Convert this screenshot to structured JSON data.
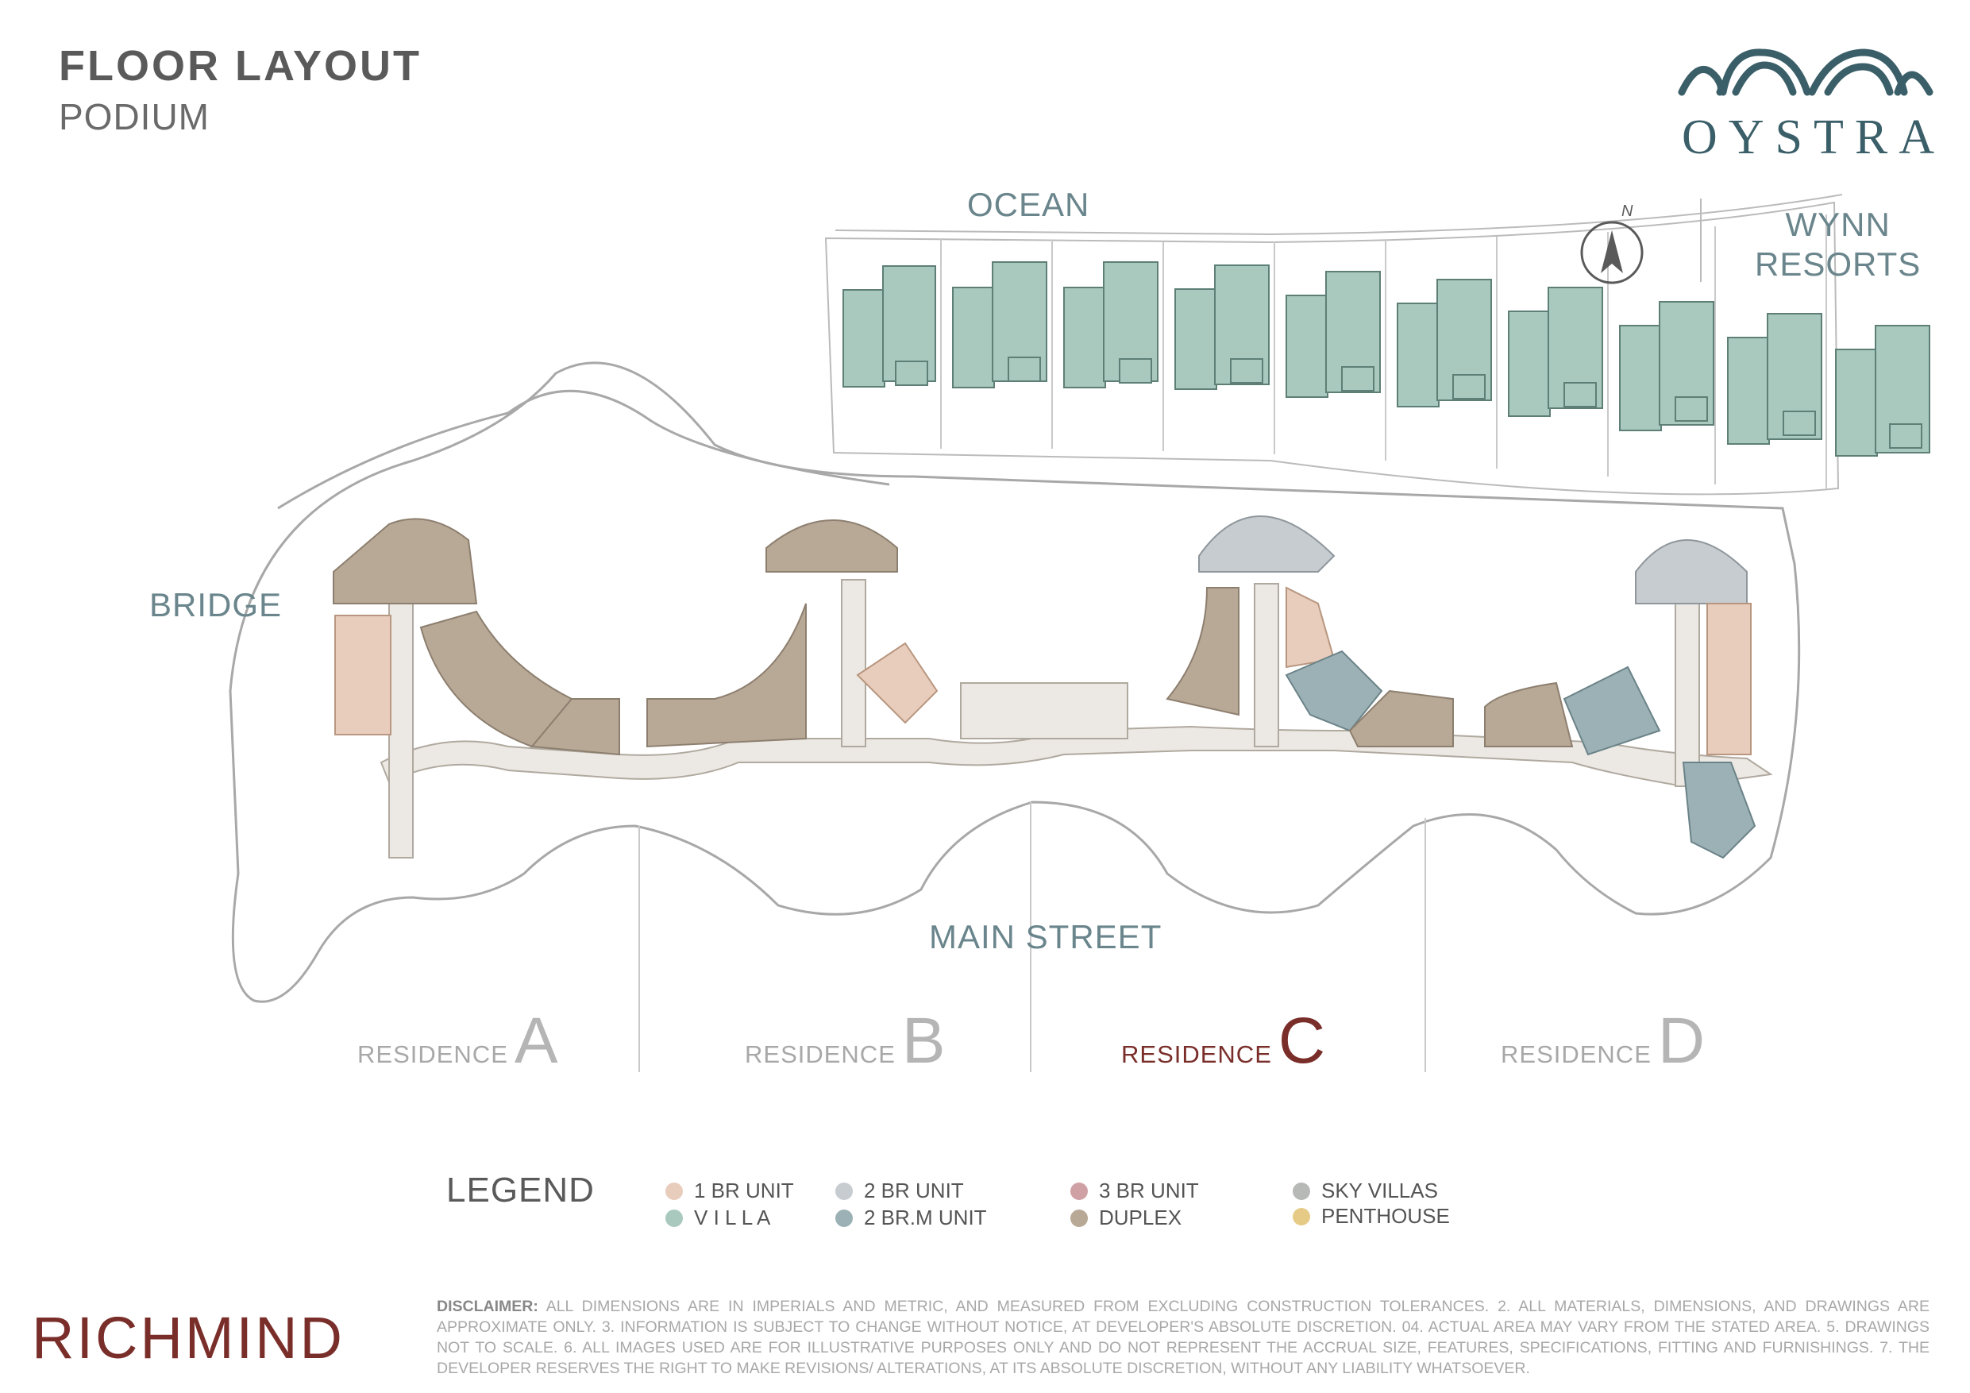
{
  "header": {
    "title": "FLOOR LAYOUT",
    "subtitle": "PODIUM"
  },
  "brand": {
    "top_name": "OYSTRA",
    "bottom_name": "RICHMIND"
  },
  "map_labels": {
    "ocean": "OCEAN",
    "wynn_line1": "WYNN",
    "wynn_line2": "RESORTS",
    "bridge": "BRIDGE",
    "main_street": "MAIN STREET",
    "compass": "N"
  },
  "residences": [
    {
      "word": "RESIDENCE",
      "letter": "A",
      "active": false
    },
    {
      "word": "RESIDENCE",
      "letter": "B",
      "active": false
    },
    {
      "word": "RESIDENCE",
      "letter": "C",
      "active": true
    },
    {
      "word": "RESIDENCE",
      "letter": "D",
      "active": false
    }
  ],
  "legend": {
    "title": "LEGEND",
    "items": [
      {
        "label": "1 BR UNIT",
        "color": "#e8cdbd"
      },
      {
        "label": "V I L L A",
        "color": "#a9c9bf"
      },
      {
        "label": "2 BR UNIT",
        "color": "#c7ccd0"
      },
      {
        "label": "2 BR.M UNIT",
        "color": "#9bb1b6"
      },
      {
        "label": "3 BR UNIT",
        "color": "#cfa1a5"
      },
      {
        "label": "DUPLEX",
        "color": "#b8a896"
      },
      {
        "label": "SKY VILLAS",
        "color": "#b6b9b5"
      },
      {
        "label": "PENTHOUSE",
        "color": "#e6cb86"
      }
    ]
  },
  "disclaimer": {
    "lead": "DISCLAIMER:",
    "text": " ALL DIMENSIONS ARE IN IMPERIALS AND METRIC, AND MEASURED FROM EXCLUDING CONSTRUCTION TOLERANCES. 2. ALL MATERIALS, DIMENSIONS, AND DRAWINGS ARE APPROXIMATE ONLY. 3. INFORMATION IS SUBJECT TO CHANGE WITHOUT NOTICE, AT DEVELOPER'S ABSOLUTE DISCRETION. 04. ACTUAL AREA MAY VARY FROM THE STATED AREA. 5. DRAWINGS NOT TO SCALE. 6. ALL IMAGES USED ARE FOR ILLUSTRATIVE PURPOSES ONLY AND DO NOT REPRESENT THE ACCRUAL SIZE, FEATURES, SPECIFICATIONS, FITTING AND FURNISHINGS. 7. THE DEVELOPER RESERVES THE RIGHT TO MAKE REVISIONS/ ALTERATIONS, AT ITS ABSOLUTE DISCRETION, WITHOUT ANY LIABILITY WHATSOEVER."
  },
  "colors": {
    "one_br": "#e8cdbd",
    "two_br": "#c7ccd0",
    "two_brm": "#9bb1b6",
    "duplex": "#b8a896",
    "villa": "#a9c9bf",
    "accent": "#7a2e2a",
    "brand_teal": "#3b5f69"
  }
}
